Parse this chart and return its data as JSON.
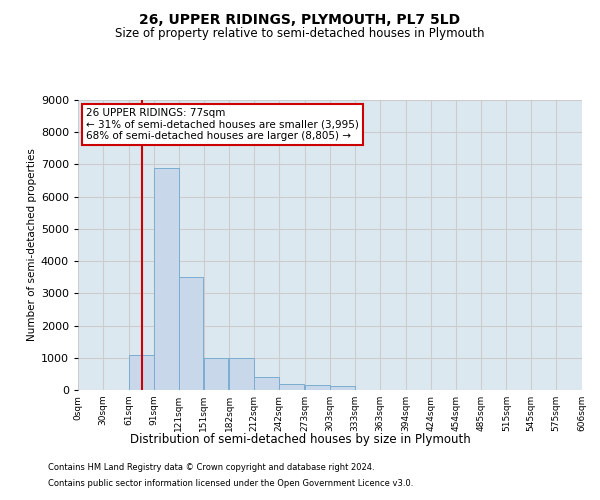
{
  "title": "26, UPPER RIDINGS, PLYMOUTH, PL7 5LD",
  "subtitle": "Size of property relative to semi-detached houses in Plymouth",
  "xlabel": "Distribution of semi-detached houses by size in Plymouth",
  "ylabel": "Number of semi-detached properties",
  "footer_line1": "Contains HM Land Registry data © Crown copyright and database right 2024.",
  "footer_line2": "Contains public sector information licensed under the Open Government Licence v3.0.",
  "annotation_title": "26 UPPER RIDINGS: 77sqm",
  "annotation_line1": "← 31% of semi-detached houses are smaller (3,995)",
  "annotation_line2": "68% of semi-detached houses are larger (8,805) →",
  "property_size": 77,
  "bin_starts": [
    0,
    30,
    61,
    91,
    121,
    151,
    182,
    212,
    242,
    273,
    303,
    333,
    363,
    394,
    424,
    454,
    485,
    515,
    545,
    575
  ],
  "bin_width": 30,
  "bar_heights": [
    0,
    0,
    1100,
    6900,
    3500,
    1000,
    1000,
    400,
    200,
    150,
    130,
    0,
    0,
    0,
    0,
    0,
    0,
    0,
    0,
    0
  ],
  "bar_color": "#c8d8ea",
  "bar_edge_color": "#7aadd0",
  "red_line_color": "#cc0000",
  "annotation_box_edgecolor": "#cc0000",
  "grid_color": "#cccccc",
  "background_color": "#dce8f0",
  "ylim": [
    0,
    9000
  ],
  "xlim": [
    0,
    606
  ],
  "yticks": [
    0,
    1000,
    2000,
    3000,
    4000,
    5000,
    6000,
    7000,
    8000,
    9000
  ],
  "xtick_positions": [
    0,
    30,
    61,
    91,
    121,
    151,
    182,
    212,
    242,
    273,
    303,
    333,
    363,
    394,
    424,
    454,
    485,
    515,
    545,
    575,
    606
  ],
  "xtick_labels": [
    "0sqm",
    "30sqm",
    "61sqm",
    "91sqm",
    "121sqm",
    "151sqm",
    "182sqm",
    "212sqm",
    "242sqm",
    "273sqm",
    "303sqm",
    "333sqm",
    "363sqm",
    "394sqm",
    "424sqm",
    "454sqm",
    "485sqm",
    "515sqm",
    "545sqm",
    "575sqm",
    "606sqm"
  ]
}
